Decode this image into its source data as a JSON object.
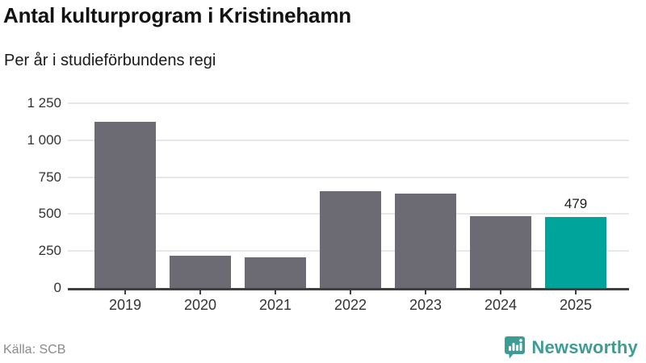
{
  "header": {
    "title": "Antal kulturprogram i Kristinehamn",
    "subtitle": "Per år i studieförbundens regi"
  },
  "chart_data": {
    "type": "bar",
    "title": "Antal kulturprogram i Kristinehamn",
    "subtitle": "Per år i studieförbundens regi",
    "categories": [
      "2019",
      "2020",
      "2021",
      "2022",
      "2023",
      "2024",
      "2025"
    ],
    "values": [
      1123,
      218,
      205,
      657,
      638,
      485,
      479
    ],
    "highlight_index": 6,
    "highlight_label": "479",
    "xlabel": "",
    "ylabel": "",
    "ylim": [
      0,
      1250
    ],
    "yticks": [
      0,
      250,
      500,
      750,
      1000,
      1250
    ],
    "ytick_labels": [
      "0",
      "250",
      "500",
      "750",
      "1 000",
      "1 250"
    ],
    "grid": true,
    "legend": "none",
    "colors": {
      "bar": "#6c6a72",
      "highlight": "#00a49a",
      "gridline": "#e7e7e7",
      "axis": "#404040",
      "tick_label": "#333333"
    }
  },
  "footer": {
    "source": "Källa: SCB",
    "brand": "Newsworthy",
    "brand_color": "#3e9c95"
  }
}
